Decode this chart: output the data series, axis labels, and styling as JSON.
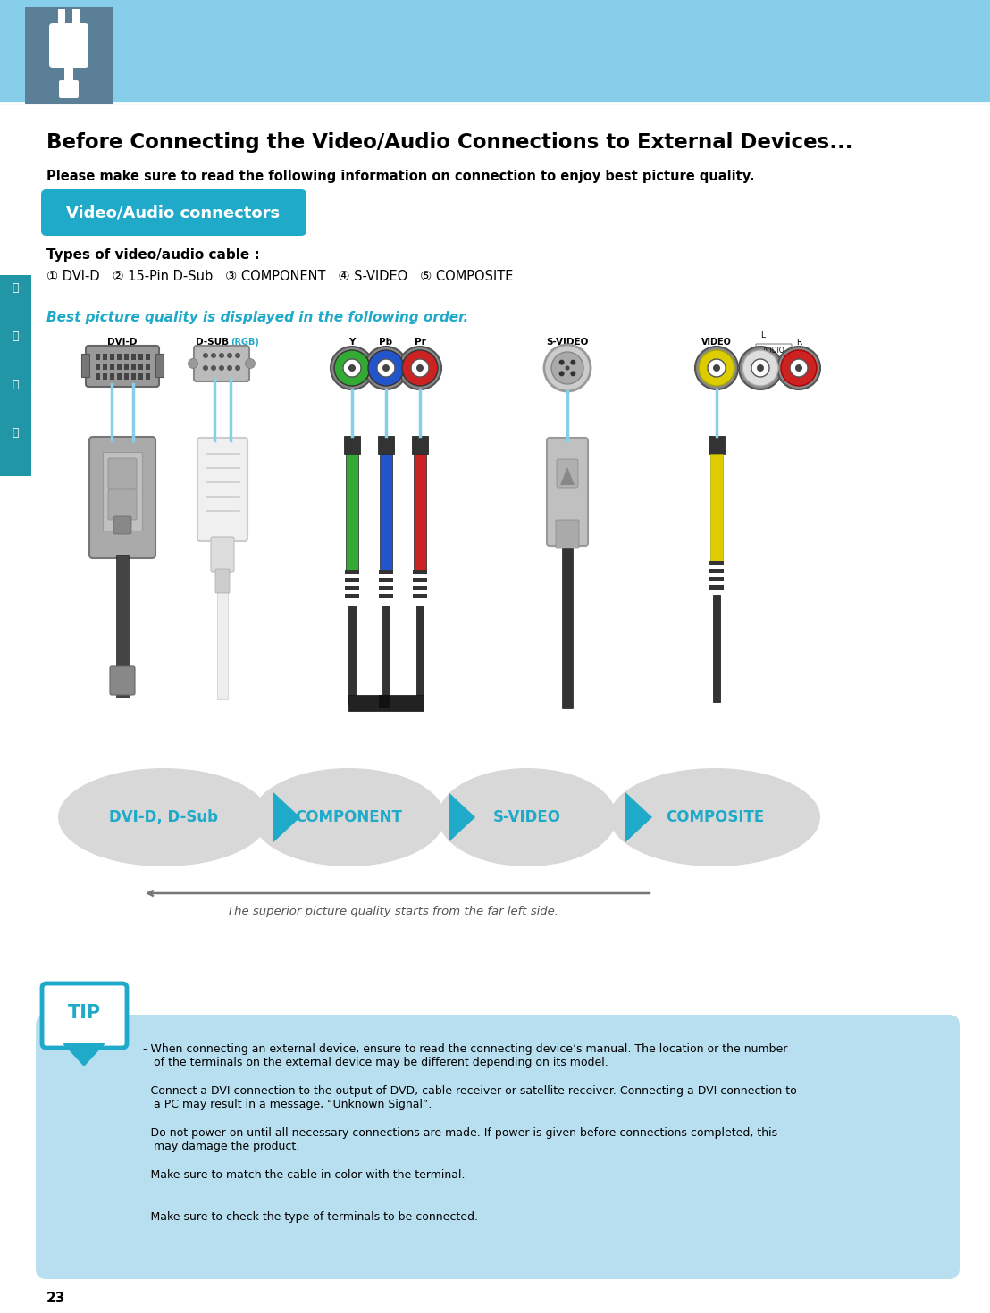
{
  "bg_color": "#ffffff",
  "header_bg_color": "#87ceeb",
  "header_dark_color": "#5b7f96",
  "teal_color": "#1eaac8",
  "teal_dark": "#1888a0",
  "tip_box_color": "#b8dff0",
  "title": "Before Connecting the Video/Audio Connections to External Devices...",
  "subtitle": "Please make sure to read the following information on connection to enjoy best picture quality.",
  "section_title": "Video/Audio connectors",
  "types_label": "Types of video/audio cable :",
  "cable_types": "① DVI-D   ② 15-Pin D-Sub   ③ COMPONENT   ④ S-VIDEO   ⑤ COMPOSITE",
  "best_quality_text": "Best picture quality is displayed in the following order.",
  "oval_box_color": "#d8d8d8",
  "oval_text_color": "#1eaac8",
  "connector_labels": [
    "DVI-D, D-Sub",
    "COMPONENT",
    "S-VIDEO",
    "COMPOSITE"
  ],
  "arrow_text": "The superior picture quality starts from the far left side.",
  "tip_bullets": [
    "When connecting an external device, ensure to read the connecting device’s manual. The location or the number\n  of the terminals on the external device may be different depending on its model.",
    "Connect a DVI connection to the output of DVD, cable receiver or satellite receiver. Connecting a DVI connection to\n  a PC may result in a message, “Unknown Signal”.",
    "Do not power on until all necessary connections are made. If power is given before connections completed, this\n  may damage the product.",
    "Make sure to match the cable in color with the terminal.",
    "Make sure to check the type of terminals to be connected."
  ],
  "page_number": "23",
  "left_sidebar_color": "#2196a6",
  "korean_chars": [
    "연",
    "결",
    "하",
    "기"
  ]
}
